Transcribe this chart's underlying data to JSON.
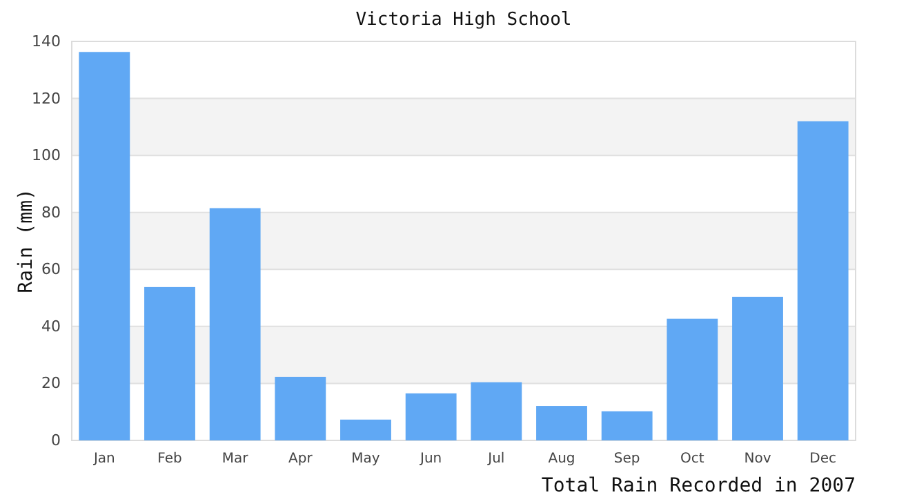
{
  "chart_data": {
    "type": "bar",
    "title": "Victoria High School",
    "xlabel": "Total Rain Recorded in 2007",
    "ylabel": "Rain (mm)",
    "categories": [
      "Jan",
      "Feb",
      "Mar",
      "Apr",
      "May",
      "Jun",
      "Jul",
      "Aug",
      "Sep",
      "Oct",
      "Nov",
      "Dec"
    ],
    "values": [
      136.3,
      53.8,
      81.5,
      22.3,
      7.3,
      16.5,
      20.4,
      12.1,
      10.2,
      42.7,
      50.4,
      112.0
    ],
    "color": "#60a8f4",
    "ylim": [
      0,
      140
    ],
    "yticks": [
      0,
      20,
      40,
      60,
      80,
      100,
      120,
      140
    ],
    "grid": "y"
  }
}
